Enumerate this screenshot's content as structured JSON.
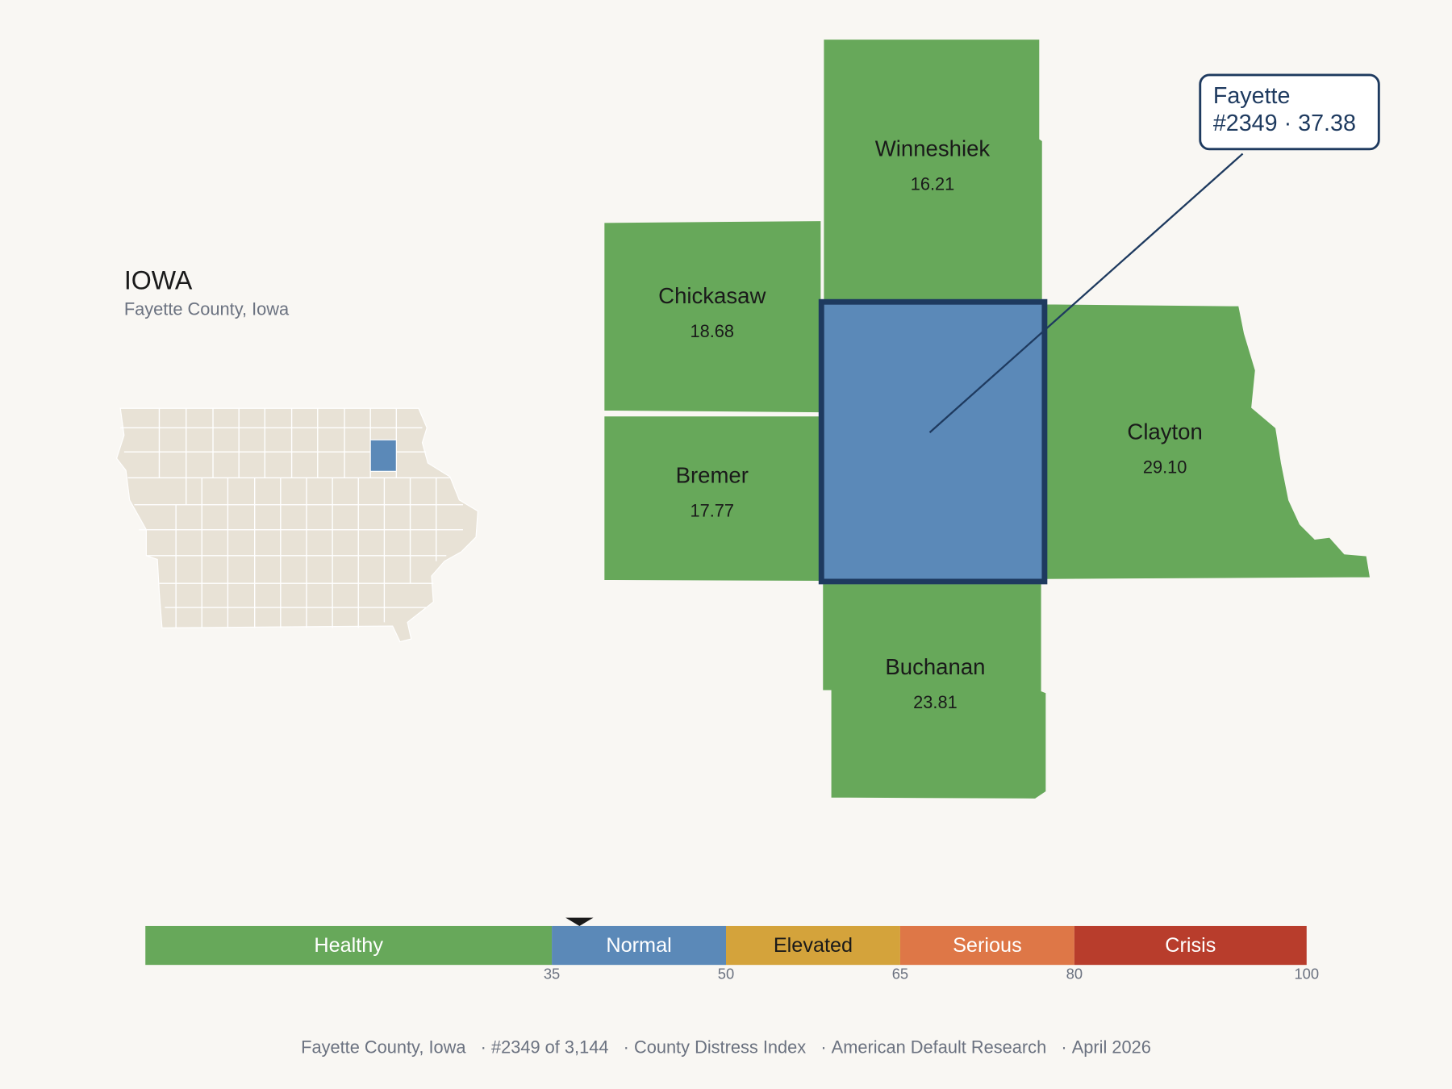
{
  "state": {
    "name": "IOWA",
    "subtitle": "Fayette County, Iowa"
  },
  "counties": [
    {
      "name": "Winneshiek",
      "score": "16.21",
      "color": "#67a85a"
    },
    {
      "name": "Chickasaw",
      "score": "18.68",
      "color": "#67a85a"
    },
    {
      "name": "Bremer",
      "score": "17.77",
      "color": "#67a85a"
    },
    {
      "name": "Clayton",
      "score": "29.10",
      "color": "#67a85a"
    },
    {
      "name": "Buchanan",
      "score": "23.81",
      "color": "#67a85a"
    }
  ],
  "callout": {
    "name": "Fayette",
    "rank": "#2349",
    "score": 37.38,
    "separator": "·",
    "color": "#5b89b8"
  },
  "scale": {
    "xlim": [
      0,
      100
    ],
    "ticks": [
      35,
      50,
      65,
      80,
      100
    ],
    "segments": [
      {
        "label": "Healthy",
        "color": "#67a85a"
      },
      {
        "label": "Normal",
        "color": "#5b89b8"
      },
      {
        "label": "Elevated",
        "color": "#d4a33b"
      },
      {
        "label": "Serious",
        "color": "#de7747"
      },
      {
        "label": "Crisis",
        "color": "#b83d2c"
      }
    ]
  },
  "footer": {
    "items": [
      "Fayette County, Iowa",
      "#2349 of 3,144",
      "County Distress Index",
      "American Default Research",
      "April 2026"
    ],
    "separator": "·"
  }
}
